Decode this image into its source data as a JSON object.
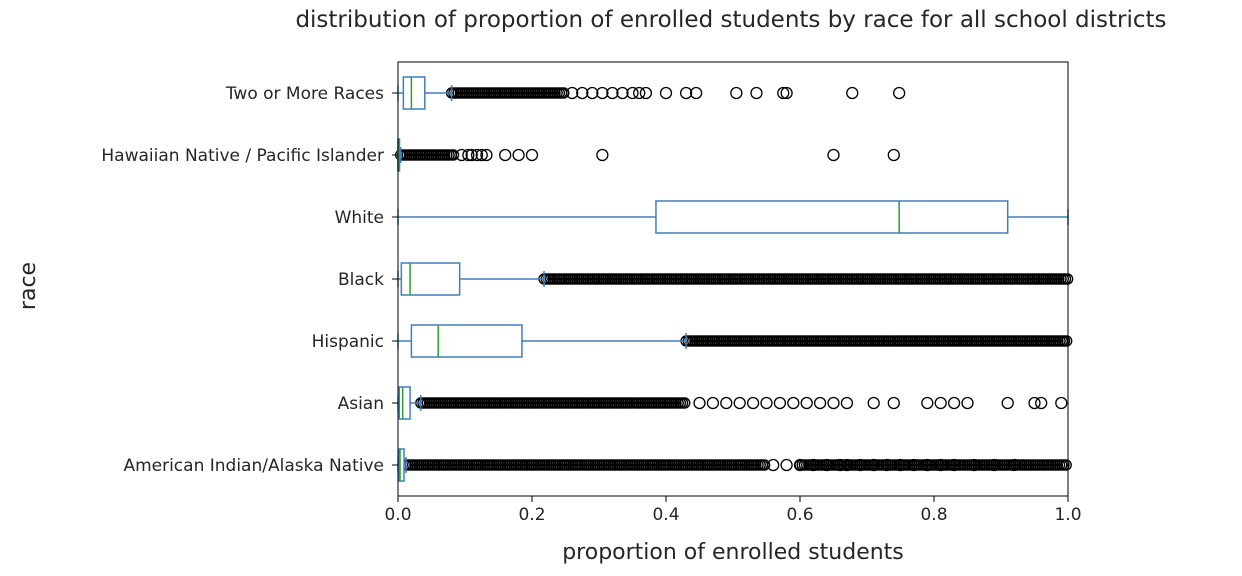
{
  "chart_data": {
    "type": "boxplot",
    "orientation": "horizontal",
    "title": "distribution of proportion of enrolled students by race for all school districts",
    "xlabel": "proportion of enrolled students",
    "ylabel": "race",
    "xlim": [
      0.0,
      1.0
    ],
    "xticks": [
      "0.0",
      "0.2",
      "0.4",
      "0.6",
      "0.8",
      "1.0"
    ],
    "grid": false,
    "colors": {
      "box": "#3f7fbf",
      "median": "#2ca02c",
      "flier": "#000000"
    },
    "categories": [
      "American Indian/Alaska Native",
      "Asian",
      "Hispanic",
      "Black",
      "White",
      "Hawaiian Native / Pacific Islander",
      "Two or More Races"
    ],
    "boxes": [
      {
        "label": "American Indian/Alaska Native",
        "whislo": 0.0,
        "q1": 0.001,
        "med": 0.003,
        "q3": 0.009,
        "whishi": 0.012,
        "dense_fliers": [
          [
            0.012,
            0.55
          ],
          [
            0.6,
            1.0
          ]
        ],
        "sparse_fliers": [
          0.56,
          0.58,
          0.6,
          0.62,
          0.64,
          0.66,
          0.67,
          0.69,
          0.71,
          0.73,
          0.75,
          0.77,
          0.79,
          0.81,
          0.83,
          0.86,
          0.89,
          0.92
        ]
      },
      {
        "label": "Asian",
        "whislo": 0.0,
        "q1": 0.002,
        "med": 0.007,
        "q3": 0.018,
        "whishi": 0.034,
        "dense_fliers": [
          [
            0.034,
            0.43
          ]
        ],
        "sparse_fliers": [
          0.45,
          0.47,
          0.49,
          0.51,
          0.53,
          0.55,
          0.57,
          0.59,
          0.61,
          0.63,
          0.65,
          0.67,
          0.71,
          0.74,
          0.79,
          0.81,
          0.83,
          0.85,
          0.91,
          0.95,
          0.96,
          0.99
        ]
      },
      {
        "label": "Hispanic",
        "whislo": 0.0,
        "q1": 0.02,
        "med": 0.06,
        "q3": 0.185,
        "whishi": 0.43,
        "dense_fliers": [
          [
            0.43,
            1.0
          ]
        ],
        "sparse_fliers": []
      },
      {
        "label": "Black",
        "whislo": 0.0,
        "q1": 0.005,
        "med": 0.018,
        "q3": 0.092,
        "whishi": 0.218,
        "dense_fliers": [
          [
            0.218,
            1.0
          ]
        ],
        "sparse_fliers": []
      },
      {
        "label": "White",
        "whislo": 0.0,
        "q1": 0.385,
        "med": 0.748,
        "q3": 0.91,
        "whishi": 1.0,
        "dense_fliers": [],
        "sparse_fliers": []
      },
      {
        "label": "Hawaiian Native / Pacific Islander",
        "whislo": 0.0,
        "q1": 0.0,
        "med": 0.0,
        "q3": 0.002,
        "whislhi_note": "",
        "whishi": 0.004,
        "dense_fliers": [
          [
            0.004,
            0.085
          ]
        ],
        "sparse_fliers": [
          0.095,
          0.105,
          0.11,
          0.118,
          0.125,
          0.132,
          0.16,
          0.18,
          0.2,
          0.305,
          0.65,
          0.74
        ]
      },
      {
        "label": "Two or More Races",
        "whislo": 0.0,
        "q1": 0.008,
        "med": 0.02,
        "q3": 0.04,
        "whishi": 0.08,
        "dense_fliers": [
          [
            0.08,
            0.25
          ]
        ],
        "sparse_fliers": [
          0.26,
          0.275,
          0.29,
          0.305,
          0.32,
          0.335,
          0.35,
          0.36,
          0.37,
          0.4,
          0.43,
          0.445,
          0.505,
          0.535,
          0.575,
          0.58,
          0.678,
          0.748
        ]
      }
    ]
  }
}
